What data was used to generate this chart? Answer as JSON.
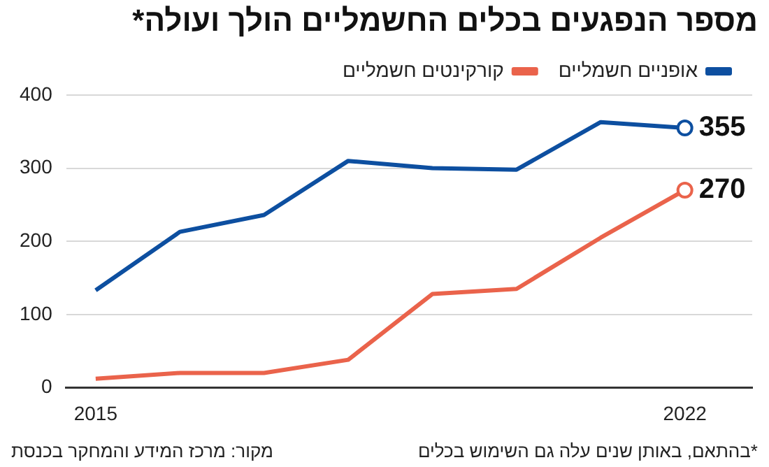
{
  "chart_data": {
    "type": "line",
    "title": "מספר הנפגעים בכלים החשמליים הולך ועולה*",
    "x": [
      2015,
      2016,
      2017,
      2018,
      2019,
      2020,
      2021,
      2022
    ],
    "series": [
      {
        "name": "אופניים חשמליים",
        "color": "#0d4fa0",
        "values": [
          133,
          213,
          236,
          310,
          300,
          298,
          363,
          355
        ],
        "value_labels": [
          null,
          null,
          null,
          null,
          null,
          null,
          null,
          "355"
        ]
      },
      {
        "name": "קורקינטים חשמליים",
        "color": "#ea634b",
        "values": [
          12,
          20,
          20,
          38,
          128,
          135,
          205,
          270
        ],
        "value_labels": [
          null,
          null,
          null,
          null,
          null,
          null,
          null,
          "270"
        ]
      }
    ],
    "xlim": [
      2014.65,
      2022.8
    ],
    "xticks": [
      2015,
      2022
    ],
    "ylim": [
      0,
      400
    ],
    "yticks": [
      0,
      100,
      200,
      300,
      400
    ],
    "grid": "y",
    "legend": "top right",
    "line_style": "solid",
    "annotations": [
      "מקור: מרכז המידע והמחקר בכנסת",
      "*בהתאם, באותן שנים עלה גם השימוש בכלים"
    ]
  }
}
